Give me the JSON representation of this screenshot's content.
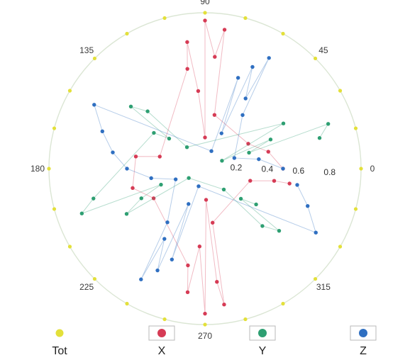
{
  "chart_data": {
    "type": "scatter",
    "coordinate_system": "polar",
    "angle_unit": "degrees",
    "angle_ticks": [
      "90",
      "45",
      "0",
      "315",
      "270",
      "225",
      "180",
      "135"
    ],
    "radial_ticks": [
      "0.2",
      "0.4",
      "0.6",
      "0.8"
    ],
    "rlim": [
      0,
      1
    ],
    "grid": false,
    "legend_position": "bottom",
    "series": [
      {
        "name": "Tot",
        "color": "#e3e03a",
        "points": [
          [
            1.0,
            0
          ],
          [
            1.0,
            15
          ],
          [
            1.0,
            30
          ],
          [
            1.0,
            45
          ],
          [
            1.0,
            60
          ],
          [
            1.0,
            75
          ],
          [
            1.0,
            90
          ],
          [
            1.0,
            105
          ],
          [
            1.0,
            120
          ],
          [
            1.0,
            135
          ],
          [
            1.0,
            150
          ],
          [
            1.0,
            165
          ],
          [
            1.0,
            180
          ],
          [
            1.0,
            195
          ],
          [
            1.0,
            210
          ],
          [
            1.0,
            225
          ],
          [
            1.0,
            240
          ],
          [
            1.0,
            255
          ],
          [
            1.0,
            270
          ],
          [
            1.0,
            285
          ],
          [
            1.0,
            300
          ],
          [
            1.0,
            315
          ],
          [
            1.0,
            330
          ],
          [
            1.0,
            345
          ]
        ]
      },
      {
        "name": "X",
        "color": "#d63b55",
        "points": [
          [
            0.95,
            90
          ],
          [
            0.82,
            98
          ],
          [
            0.9,
            82
          ],
          [
            0.65,
            100
          ],
          [
            0.72,
            85
          ],
          [
            0.5,
            95
          ],
          [
            0.35,
            80
          ],
          [
            0.2,
            90
          ],
          [
            0.93,
            270
          ],
          [
            0.8,
            262
          ],
          [
            0.88,
            278
          ],
          [
            0.63,
            260
          ],
          [
            0.73,
            276
          ],
          [
            0.5,
            266
          ],
          [
            0.35,
            278
          ],
          [
            0.2,
            272
          ],
          [
            0.32,
            30
          ],
          [
            0.42,
            15
          ],
          [
            0.5,
            0
          ],
          [
            0.45,
            -10
          ],
          [
            0.55,
            350
          ],
          [
            0.3,
            345
          ],
          [
            0.38,
            210
          ],
          [
            0.48,
            195
          ],
          [
            0.45,
            170
          ],
          [
            0.3,
            165
          ]
        ]
      },
      {
        "name": "Y",
        "color": "#2e9f72",
        "points": [
          [
            0.84,
            20
          ],
          [
            0.76,
            15
          ],
          [
            0.58,
            30
          ],
          [
            0.46,
            24
          ],
          [
            0.3,
            20
          ],
          [
            0.12,
            25
          ],
          [
            0.84,
            200
          ],
          [
            0.74,
            195
          ],
          [
            0.58,
            210
          ],
          [
            0.45,
            205
          ],
          [
            0.3,
            200
          ],
          [
            0.12,
            210
          ],
          [
            0.62,
            320
          ],
          [
            0.52,
            315
          ],
          [
            0.4,
            325
          ],
          [
            0.3,
            320
          ],
          [
            0.18,
            312
          ],
          [
            0.62,
            140
          ],
          [
            0.52,
            135
          ],
          [
            0.4,
            145
          ],
          [
            0.3,
            140
          ],
          [
            0.18,
            130
          ]
        ]
      },
      {
        "name": "Z",
        "color": "#2f6fc1",
        "points": [
          [
            0.82,
            60
          ],
          [
            0.72,
            65
          ],
          [
            0.62,
            70
          ],
          [
            0.52,
            60
          ],
          [
            0.42,
            55
          ],
          [
            0.25,
            65
          ],
          [
            0.12,
            70
          ],
          [
            0.82,
            240
          ],
          [
            0.72,
            245
          ],
          [
            0.62,
            250
          ],
          [
            0.52,
            240
          ],
          [
            0.42,
            235
          ],
          [
            0.25,
            245
          ],
          [
            0.12,
            250
          ],
          [
            0.82,
            150
          ],
          [
            0.7,
            160
          ],
          [
            0.6,
            170
          ],
          [
            0.5,
            180
          ],
          [
            0.35,
            190
          ],
          [
            0.2,
            200
          ],
          [
            0.82,
            330
          ],
          [
            0.7,
            340
          ],
          [
            0.6,
            350
          ],
          [
            0.5,
            0
          ],
          [
            0.35,
            10
          ],
          [
            0.2,
            20
          ]
        ]
      }
    ]
  }
}
